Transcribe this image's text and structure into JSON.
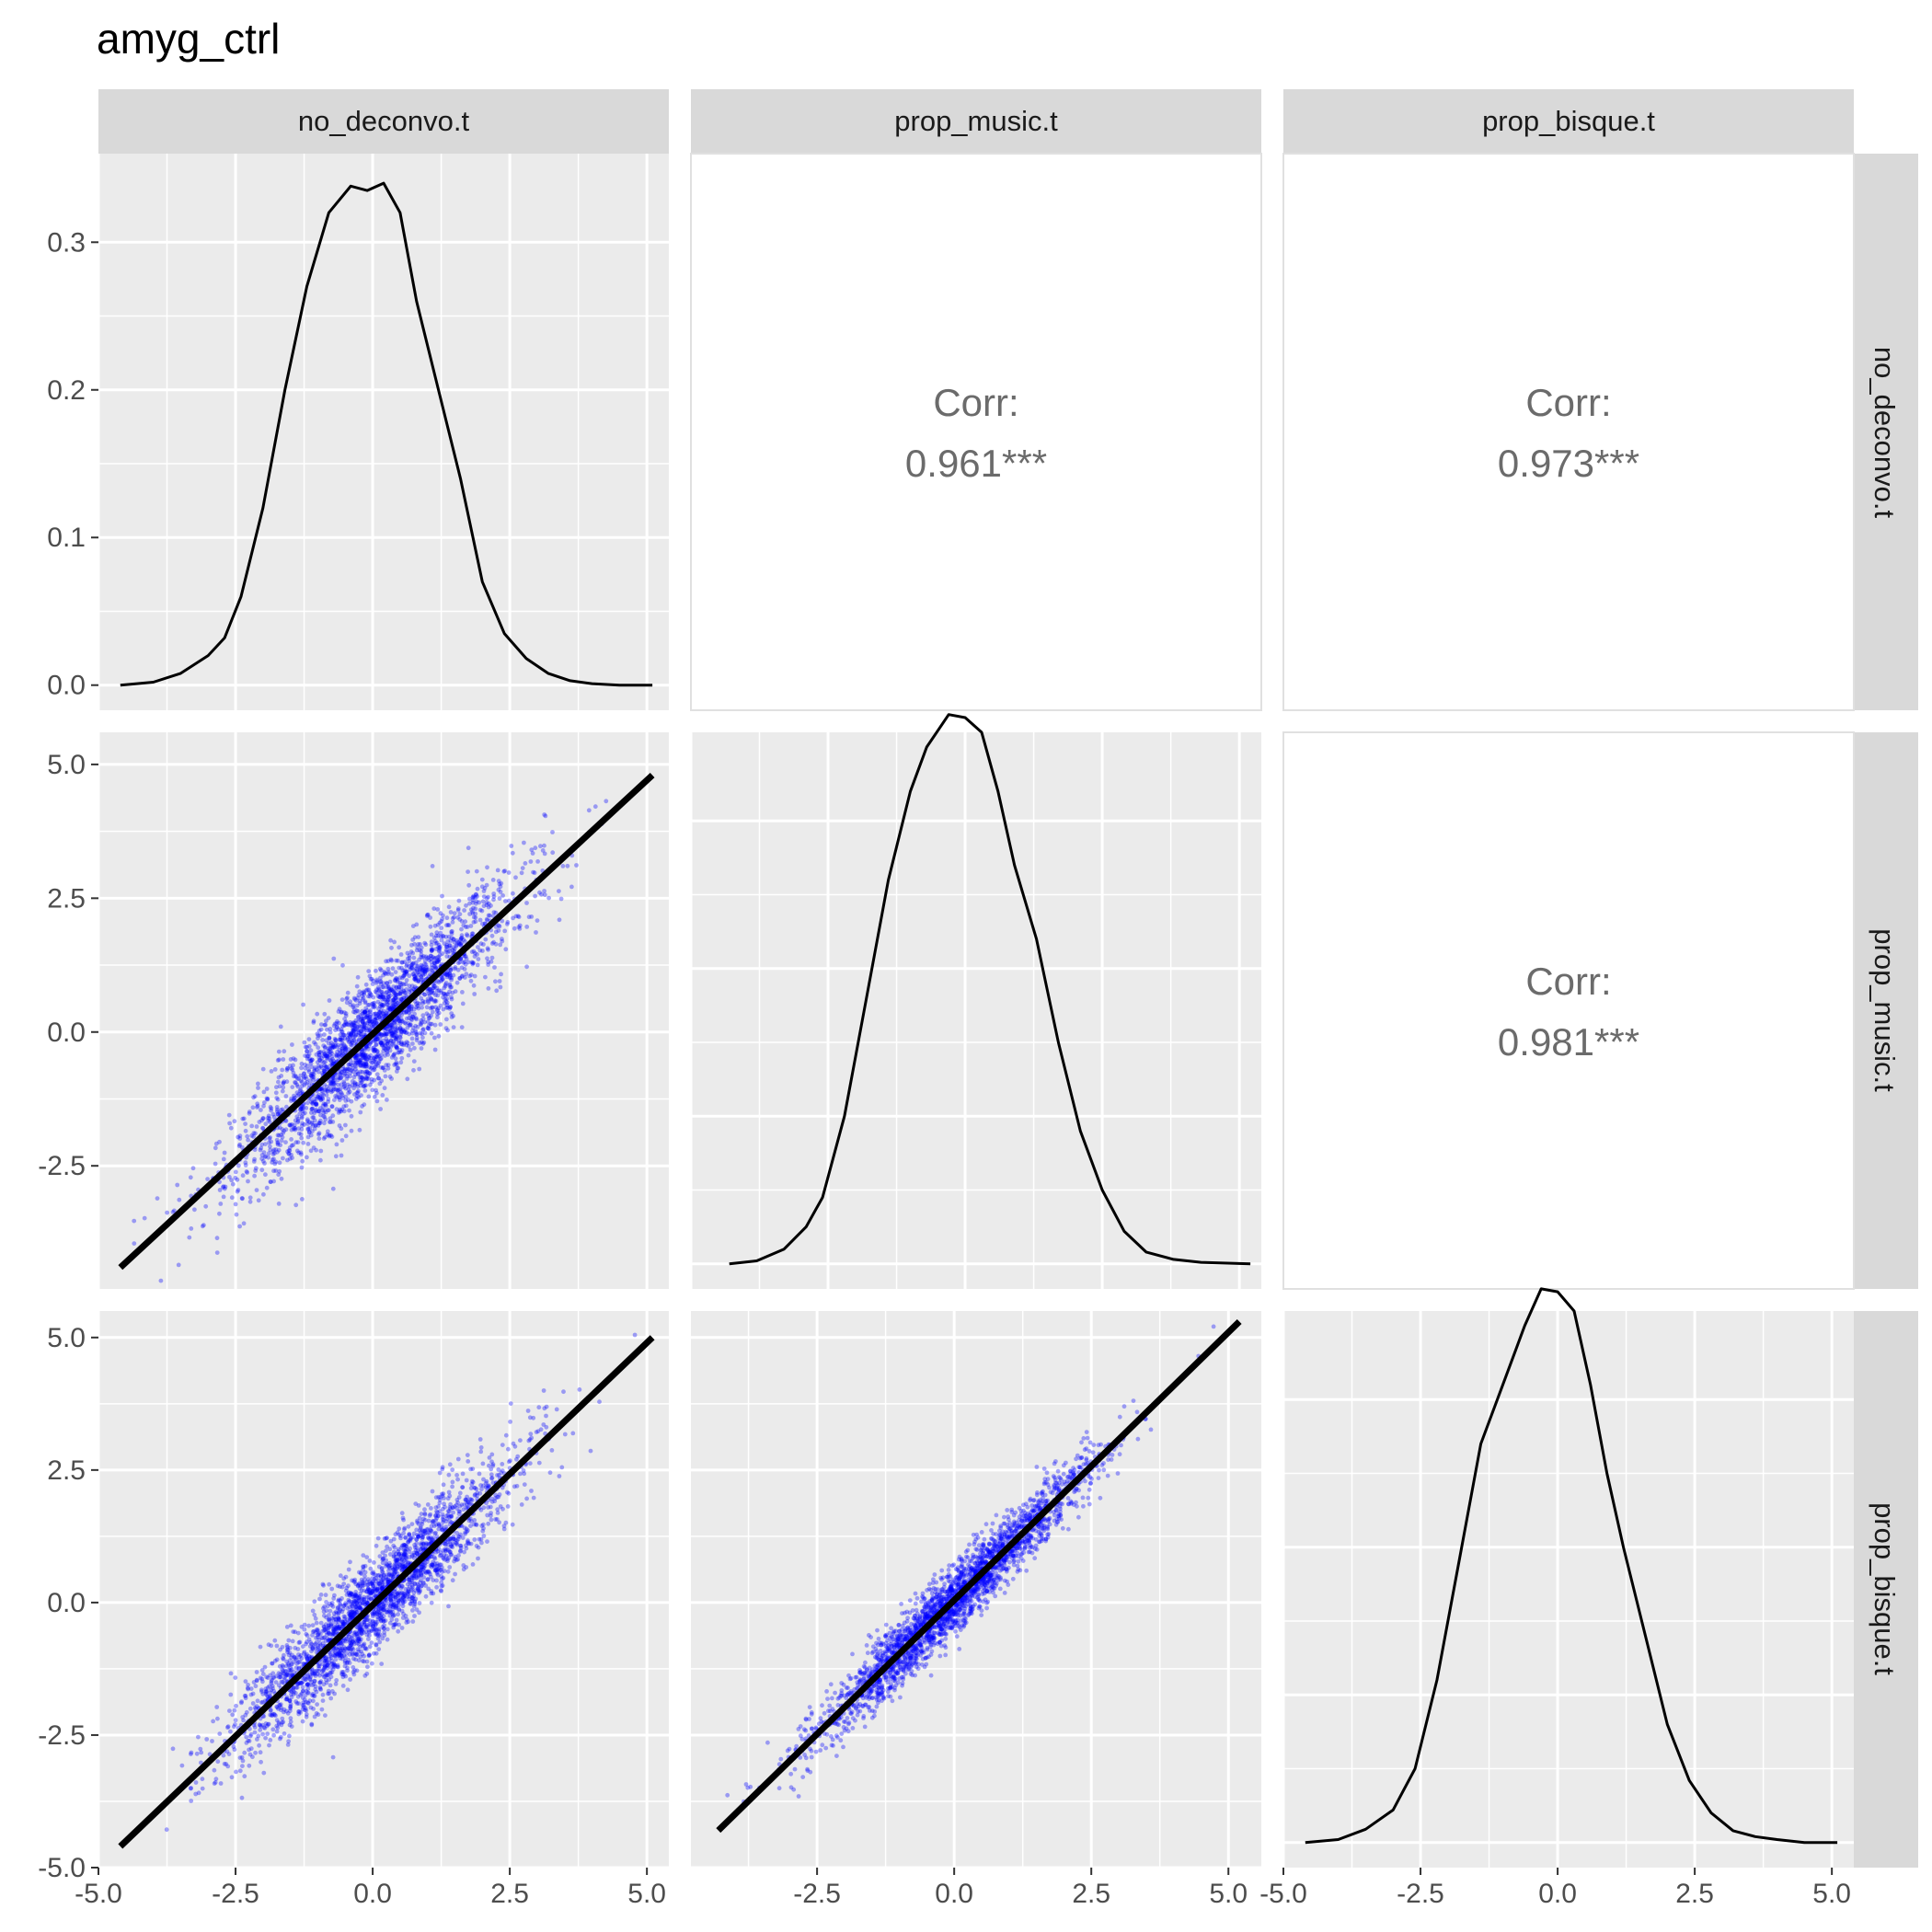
{
  "title": "amyg_ctrl",
  "variables": [
    "no_deconvo.t",
    "prop_music.t",
    "prop_bisque.t"
  ],
  "correlations": {
    "label": "Corr:",
    "no_deconvo.t__prop_music.t": "0.961***",
    "no_deconvo.t__prop_bisque.t": "0.973***",
    "prop_music.t__prop_bisque.t": "0.981***"
  },
  "axes": {
    "x_ticks": [
      "-5.0",
      "-2.5",
      "0.0",
      "2.5",
      "5.0"
    ],
    "x_tick_values": [
      -5,
      -2.5,
      0,
      2.5,
      5
    ],
    "density_y_ticks": [
      "0.0",
      "0.1",
      "0.2",
      "0.3"
    ],
    "density_y_tick_values": [
      0,
      0.1,
      0.2,
      0.3
    ],
    "y_ticks_row2": [
      "-2.5",
      "0.0",
      "2.5",
      "5.0"
    ],
    "y_tick_values_row2": [
      -2.5,
      0,
      2.5,
      5
    ],
    "y_ticks_row3": [
      "-5.0",
      "-2.5",
      "0.0",
      "2.5",
      "5.0"
    ],
    "y_tick_values_row3": [
      -5,
      -2.5,
      0,
      2.5,
      5
    ]
  },
  "colors": {
    "panel_bg": "#ebebeb",
    "grid": "#ffffff",
    "strip_bg": "#d9d9d9",
    "points": "#0000ff",
    "line": "#000000"
  },
  "chart_data": {
    "type": "scatter",
    "subtype": "pairs-plot",
    "title": "amyg_ctrl",
    "variables": [
      "no_deconvo.t",
      "prop_music.t",
      "prop_bisque.t"
    ],
    "diagonal": {
      "type": "density",
      "densities": [
        {
          "name": "no_deconvo.t",
          "x": [
            -4.6,
            -4.0,
            -3.5,
            -3.0,
            -2.7,
            -2.4,
            -2.0,
            -1.6,
            -1.2,
            -0.8,
            -0.4,
            -0.1,
            0.2,
            0.5,
            0.8,
            1.2,
            1.6,
            2.0,
            2.4,
            2.8,
            3.2,
            3.6,
            4.0,
            4.5,
            5.1
          ],
          "y": [
            0.0,
            0.002,
            0.008,
            0.02,
            0.032,
            0.06,
            0.12,
            0.2,
            0.27,
            0.32,
            0.338,
            0.335,
            0.34,
            0.32,
            0.26,
            0.2,
            0.14,
            0.07,
            0.035,
            0.018,
            0.008,
            0.003,
            0.001,
            0.0,
            0.0
          ]
        },
        {
          "name": "prop_music.t",
          "x": [
            -4.3,
            -3.8,
            -3.3,
            -2.9,
            -2.6,
            -2.2,
            -1.8,
            -1.4,
            -1.0,
            -0.7,
            -0.3,
            0.0,
            0.3,
            0.6,
            0.9,
            1.3,
            1.7,
            2.1,
            2.5,
            2.9,
            3.3,
            3.8,
            4.3,
            5.2
          ],
          "y": [
            0.0,
            0.002,
            0.01,
            0.025,
            0.045,
            0.1,
            0.18,
            0.26,
            0.32,
            0.35,
            0.372,
            0.37,
            0.36,
            0.32,
            0.27,
            0.22,
            0.15,
            0.09,
            0.05,
            0.022,
            0.008,
            0.003,
            0.001,
            0.0
          ]
        },
        {
          "name": "prop_bisque.t",
          "x": [
            -4.6,
            -4.0,
            -3.5,
            -3.0,
            -2.6,
            -2.2,
            -1.8,
            -1.4,
            -1.0,
            -0.6,
            -0.3,
            0.0,
            0.3,
            0.6,
            0.9,
            1.2,
            1.6,
            2.0,
            2.4,
            2.8,
            3.2,
            3.6,
            4.0,
            4.5,
            5.1
          ],
          "y": [
            0.0,
            0.002,
            0.009,
            0.022,
            0.05,
            0.11,
            0.19,
            0.27,
            0.31,
            0.35,
            0.375,
            0.373,
            0.36,
            0.31,
            0.25,
            0.2,
            0.14,
            0.08,
            0.042,
            0.02,
            0.008,
            0.004,
            0.002,
            0.0,
            0.0
          ]
        }
      ]
    },
    "scatter_panels": [
      {
        "x": "no_deconvo.t",
        "y": "prop_music.t",
        "fit_line": {
          "x": [
            -4.6,
            5.1
          ],
          "y": [
            -4.4,
            4.8
          ]
        },
        "xlim": [
          -5.0,
          5.4
        ],
        "ylim": [
          -4.8,
          5.6
        ],
        "spread_sd": 0.55,
        "n_points": 2600
      },
      {
        "x": "no_deconvo.t",
        "y": "prop_bisque.t",
        "fit_line": {
          "x": [
            -4.6,
            5.1
          ],
          "y": [
            -4.6,
            5.0
          ]
        },
        "xlim": [
          -5.0,
          5.4
        ],
        "ylim": [
          -5.0,
          5.5
        ],
        "spread_sd": 0.45,
        "n_points": 2600
      },
      {
        "x": "prop_music.t",
        "y": "prop_bisque.t",
        "fit_line": {
          "x": [
            -4.3,
            5.2
          ],
          "y": [
            -4.3,
            5.3
          ]
        },
        "xlim": [
          -4.8,
          5.6
        ],
        "ylim": [
          -5.0,
          5.5
        ],
        "spread_sd": 0.3,
        "n_points": 2600
      }
    ],
    "correlations": [
      {
        "pair": [
          "no_deconvo.t",
          "prop_music.t"
        ],
        "value": "0.961***"
      },
      {
        "pair": [
          "no_deconvo.t",
          "prop_bisque.t"
        ],
        "value": "0.973***"
      },
      {
        "pair": [
          "prop_music.t",
          "prop_bisque.t"
        ],
        "value": "0.981***"
      }
    ],
    "grid": true
  }
}
